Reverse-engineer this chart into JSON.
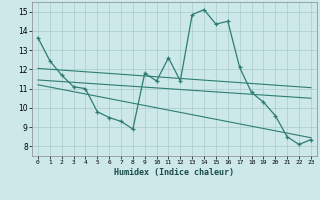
{
  "xlabel": "Humidex (Indice chaleur)",
  "bg_color": "#cce8e8",
  "grid_color": "#aacccc",
  "line_color": "#2e7d70",
  "xlim": [
    -0.5,
    23.5
  ],
  "ylim": [
    7.5,
    15.5
  ],
  "xticks": [
    0,
    1,
    2,
    3,
    4,
    5,
    6,
    7,
    8,
    9,
    10,
    11,
    12,
    13,
    14,
    15,
    16,
    17,
    18,
    19,
    20,
    21,
    22,
    23
  ],
  "yticks": [
    8,
    9,
    10,
    11,
    12,
    13,
    14,
    15
  ],
  "main_x": [
    0,
    1,
    2,
    3,
    4,
    5,
    6,
    7,
    8,
    9,
    10,
    11,
    12,
    13,
    14,
    15,
    16,
    17,
    18,
    19,
    20,
    21,
    22,
    23
  ],
  "main_y": [
    13.65,
    12.45,
    11.7,
    11.1,
    11.0,
    9.8,
    9.5,
    9.3,
    8.9,
    11.8,
    11.4,
    12.6,
    11.4,
    14.85,
    15.1,
    14.35,
    14.5,
    12.1,
    10.8,
    10.3,
    9.6,
    8.5,
    8.1,
    8.35
  ],
  "trend1_x": [
    0,
    23
  ],
  "trend1_y": [
    12.05,
    11.05
  ],
  "trend2_x": [
    0,
    23
  ],
  "trend2_y": [
    11.45,
    10.5
  ],
  "trend3_x": [
    0,
    23
  ],
  "trend3_y": [
    11.2,
    8.45
  ]
}
